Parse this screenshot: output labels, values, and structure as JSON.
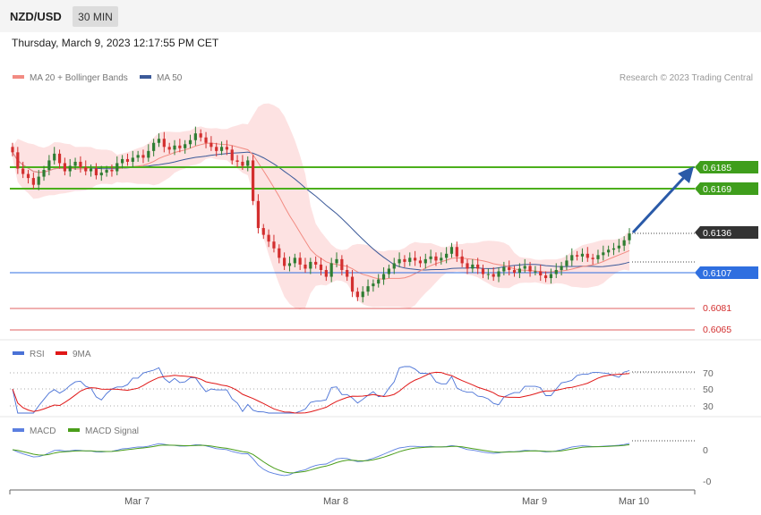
{
  "header": {
    "symbol": "NZD/USD",
    "timeframe": "30 MIN",
    "datetime": "Thursday, March 9, 2023 12:17:55 PM CET"
  },
  "legend": {
    "ma20_bb": "MA 20 + Bollinger Bands",
    "ma50": "MA 50",
    "credit": "Research © 2023 Trading Central"
  },
  "colors": {
    "bull": "#2e7d32",
    "bear": "#d32f2f",
    "ma20": "#f28b82",
    "ma50": "#3c5a99",
    "bb_fill": "#fde0e0",
    "resistance": "#4caf1c",
    "support_blue": "#2f6fe0",
    "support_red": "#e06060",
    "rsi": "#4a72d6",
    "rsi_ma": "#e01818",
    "macd": "#5b7fe0",
    "macd_signal": "#4a9e1a",
    "arrow": "#2a5aa8"
  },
  "price_levels": [
    {
      "value": "0.6185",
      "kind": "resistance"
    },
    {
      "value": "0.6169",
      "kind": "resistance"
    },
    {
      "value": "0.6136",
      "kind": "last"
    },
    {
      "value": "0.6107",
      "kind": "support"
    },
    {
      "value": "0.6081",
      "kind": "support-minor"
    },
    {
      "value": "0.6065",
      "kind": "support-minor"
    }
  ],
  "rsi_panel": {
    "label": "RSI",
    "ma_label": "9MA",
    "ticks": [
      "70",
      "50",
      "30"
    ]
  },
  "macd_panel": {
    "label": "MACD",
    "signal_label": "MACD Signal",
    "ticks": [
      "0",
      "-0"
    ]
  },
  "x_axis": {
    "labels": [
      "Mar 7",
      "Mar 8",
      "Mar 9",
      "Mar 10"
    ]
  },
  "chart_data": {
    "type": "candlestick",
    "instrument": "NZD/USD",
    "interval": "30 MIN",
    "ylim": [
      0.605,
      0.624
    ],
    "annotations": {
      "projection_from": 0.6136,
      "projection_to": 0.6185
    },
    "close_path": [
      0.6196,
      0.6184,
      0.618,
      0.6177,
      0.6172,
      0.6178,
      0.6183,
      0.619,
      0.6195,
      0.6188,
      0.6182,
      0.6186,
      0.6189,
      0.6185,
      0.6182,
      0.6184,
      0.6179,
      0.6181,
      0.6183,
      0.6182,
      0.6188,
      0.6191,
      0.6189,
      0.6192,
      0.6194,
      0.6192,
      0.6197,
      0.6203,
      0.6206,
      0.62,
      0.6198,
      0.6201,
      0.6199,
      0.6202,
      0.6205,
      0.621,
      0.6207,
      0.6203,
      0.62,
      0.6197,
      0.62,
      0.6198,
      0.619,
      0.6189,
      0.6186,
      0.619,
      0.616,
      0.614,
      0.6135,
      0.613,
      0.6125,
      0.6118,
      0.6112,
      0.6114,
      0.6118,
      0.6113,
      0.611,
      0.6115,
      0.6113,
      0.6109,
      0.6104,
      0.6114,
      0.6117,
      0.6109,
      0.6104,
      0.6093,
      0.6089,
      0.6093,
      0.6097,
      0.6099,
      0.6102,
      0.6106,
      0.611,
      0.6114,
      0.6117,
      0.6115,
      0.6118,
      0.6116,
      0.6114,
      0.6117,
      0.6119,
      0.6116,
      0.6118,
      0.6121,
      0.6126,
      0.6119,
      0.6114,
      0.611,
      0.6113,
      0.611,
      0.6106,
      0.6106,
      0.6104,
      0.6108,
      0.6111,
      0.6109,
      0.6107,
      0.611,
      0.6112,
      0.6108,
      0.6108,
      0.6105,
      0.6103,
      0.6106,
      0.6109,
      0.6112,
      0.6116,
      0.612,
      0.6119,
      0.6121,
      0.6118,
      0.6117,
      0.612,
      0.6122,
      0.6124,
      0.6125,
      0.6127,
      0.6131,
      0.6136
    ]
  }
}
